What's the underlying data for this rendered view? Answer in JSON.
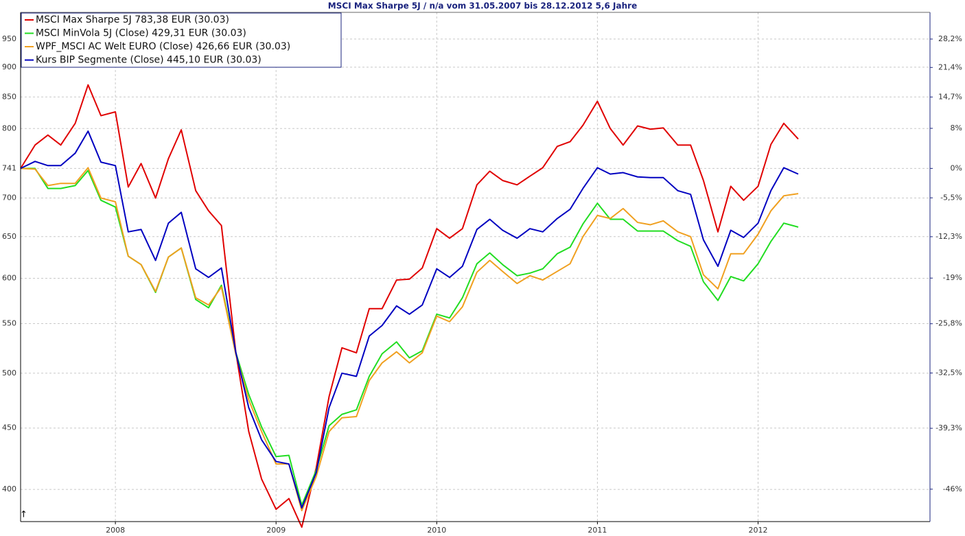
{
  "chart_data": {
    "type": "line",
    "title": "MSCI Max Sharpe 5J / n/a vom 31.05.2007 bis 28.12.2012 5,6 Jahre",
    "x": [
      2007.41,
      2007.5,
      2007.58,
      2007.66,
      2007.75,
      2007.83,
      2007.91,
      2008.0,
      2008.08,
      2008.16,
      2008.25,
      2008.33,
      2008.41,
      2008.5,
      2008.58,
      2008.66,
      2008.75,
      2008.83,
      2008.91,
      2009.0,
      2009.08,
      2009.16,
      2009.25,
      2009.33,
      2009.41,
      2009.5,
      2009.58,
      2009.66,
      2009.75,
      2009.83,
      2009.91,
      2010.0,
      2010.08,
      2010.16,
      2010.25,
      2010.33,
      2010.41,
      2010.5,
      2010.58,
      2010.66,
      2010.75,
      2010.83,
      2010.91,
      2011.0,
      2011.08,
      2011.16,
      2011.25,
      2011.33,
      2011.41,
      2011.5,
      2011.58,
      2011.66,
      2011.75,
      2011.83,
      2011.91,
      2012.0,
      2012.08,
      2012.16,
      2012.25
    ],
    "series": [
      {
        "name": "MSCI Max Sharpe 5J 783,38 EUR (30.03)",
        "color": "#e00000",
        "values": [
          741,
          775,
          790,
          775,
          808,
          870,
          820,
          826,
          715,
          748,
          700,
          755,
          798,
          710,
          683,
          664,
          520,
          447,
          408,
          385,
          393,
          372,
          417,
          478,
          525,
          520,
          566,
          566,
          598,
          599,
          612,
          660,
          648,
          660,
          718,
          737,
          724,
          718,
          730,
          742,
          773,
          780,
          805,
          843,
          800,
          775,
          804,
          799,
          801,
          775,
          775,
          724,
          656,
          716,
          697,
          716,
          776,
          808,
          784
        ]
      },
      {
        "name": "MSCI MinVola 5J (Close) 429,31 EUR (30.03)",
        "color": "#22dd22",
        "values": [
          741,
          741,
          713,
          713,
          717,
          738,
          697,
          688,
          626,
          616,
          584,
          625,
          636,
          576,
          567,
          592,
          520,
          480,
          451,
          426,
          427,
          388,
          415,
          452,
          462,
          466,
          497,
          519,
          531,
          515,
          522,
          560,
          556,
          578,
          617,
          630,
          616,
          603,
          606,
          611,
          629,
          637,
          666,
          693,
          672,
          672,
          657,
          657,
          657,
          645,
          638,
          596,
          575,
          602,
          597,
          617,
          644,
          667,
          662
        ]
      },
      {
        "name": "WPF_MSCI AC Welt EURO (Close) 426,66 EUR (30.03)",
        "color": "#f0a020",
        "values": [
          741,
          740,
          717,
          720,
          720,
          742,
          700,
          695,
          626,
          616,
          585,
          625,
          636,
          578,
          570,
          590,
          518,
          475,
          447,
          420,
          420,
          384,
          410,
          447,
          459,
          460,
          493,
          510,
          521,
          510,
          520,
          558,
          552,
          568,
          607,
          621,
          608,
          594,
          603,
          598,
          608,
          617,
          650,
          677,
          673,
          686,
          668,
          665,
          670,
          656,
          650,
          604,
          588,
          629,
          629,
          653,
          683,
          703,
          706
        ]
      },
      {
        "name": "Kurs BIP Segmente (Close) 445,10 EUR (30.03)",
        "color": "#0000c0",
        "values": [
          741,
          751,
          745,
          745,
          763,
          796,
          750,
          745,
          656,
          659,
          621,
          667,
          681,
          611,
          601,
          612,
          520,
          468,
          440,
          422,
          420,
          386,
          413,
          468,
          500,
          497,
          537,
          548,
          569,
          560,
          570,
          611,
          601,
          614,
          659,
          672,
          658,
          648,
          660,
          656,
          673,
          685,
          713,
          742,
          733,
          735,
          729,
          728,
          728,
          710,
          705,
          646,
          614,
          658,
          649,
          667,
          710,
          742,
          733
        ]
      }
    ],
    "xlim": [
      2007.41,
      2013.07
    ],
    "xticks": [
      2008,
      2009,
      2010,
      2011,
      2012
    ],
    "ylim": [
      376,
      1000
    ],
    "yticks": [
      950,
      900,
      850,
      800,
      741,
      700,
      650,
      600,
      550,
      500,
      450,
      400
    ],
    "log_scale": true,
    "y2lim": [
      -49.26,
      34.95
    ],
    "y2ticks": [
      {
        "value": 28.2,
        "label": "28,2%"
      },
      {
        "value": 21.4,
        "label": "21,4%"
      },
      {
        "value": 14.7,
        "label": "14,7%"
      },
      {
        "value": 8,
        "label": "8%"
      },
      {
        "value": 0,
        "label": "0%"
      },
      {
        "value": -5.5,
        "label": "-5,5%"
      },
      {
        "value": -12.3,
        "label": "-12,3%"
      },
      {
        "value": -19,
        "label": "-19%"
      },
      {
        "value": -25.8,
        "label": "-25,8%"
      },
      {
        "value": -32.5,
        "label": "-32,5%"
      },
      {
        "value": -39.3,
        "label": "-39,3%"
      },
      {
        "value": -46,
        "label": "-46%"
      }
    ],
    "grid": true,
    "legend": "upper left"
  }
}
